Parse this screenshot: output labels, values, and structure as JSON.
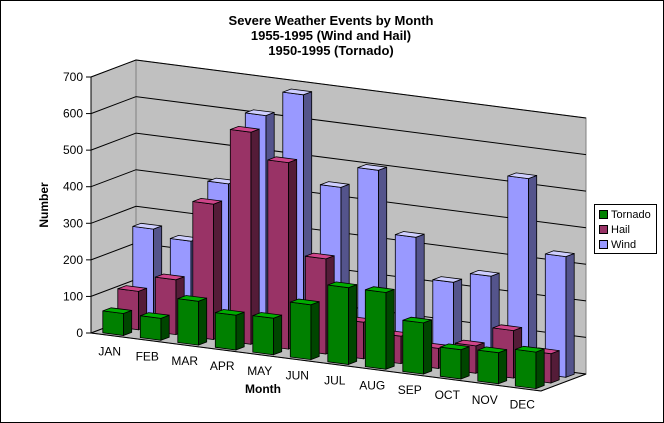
{
  "chart_data": {
    "type": "bar",
    "title": [
      "Severe Weather Events by Month",
      "1955-1995 (Wind and Hail)",
      "1950-1995 (Tornado)"
    ],
    "xlabel": "Month",
    "ylabel": "Number",
    "ylim": [
      0,
      700
    ],
    "yticks": [
      "0",
      "100",
      "200",
      "300",
      "400",
      "500",
      "600",
      "700"
    ],
    "categories": [
      "JAN",
      "FEB",
      "MAR",
      "APR",
      "MAY",
      "JUN",
      "JUL",
      "AUG",
      "SEP",
      "OCT",
      "NOV",
      "DEC"
    ],
    "grid": true,
    "legend_position": "right",
    "series": [
      {
        "name": "Tornado",
        "color": "#008000",
        "values": [
          60,
          60,
          120,
          95,
          100,
          150,
          210,
          210,
          140,
          80,
          85,
          100
        ]
      },
      {
        "name": "Hail",
        "color": "#993366",
        "values": [
          105,
          150,
          370,
          580,
          510,
          260,
          100,
          75,
          55,
          75,
          130,
          80
        ]
      },
      {
        "name": "Wind",
        "color": "#9999ff",
        "values": [
          260,
          240,
          410,
          610,
          680,
          440,
          500,
          330,
          220,
          250,
          530,
          330
        ]
      }
    ]
  }
}
